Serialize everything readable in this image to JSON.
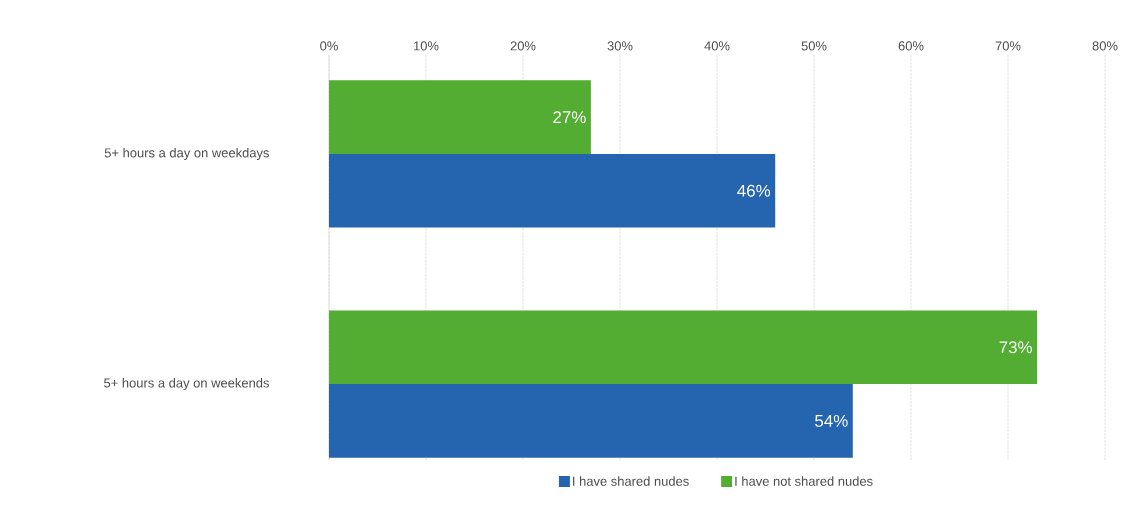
{
  "chart_data": {
    "type": "bar",
    "orientation": "horizontal",
    "categories": [
      "5+ hours a day on weekdays",
      "5+ hours a day on weekends"
    ],
    "series": [
      {
        "name": "I have shared nudes",
        "color": "#2564ae",
        "values": [
          46,
          54
        ],
        "value_labels": [
          "46%",
          "54%"
        ]
      },
      {
        "name": "I have not shared nudes",
        "color": "#52ad32",
        "values": [
          27,
          73
        ],
        "value_labels": [
          "27%",
          "73%"
        ]
      }
    ],
    "xlim": [
      0,
      80
    ],
    "xticks": [
      {
        "value": 0,
        "label": "0%"
      },
      {
        "value": 10,
        "label": "10%"
      },
      {
        "value": 20,
        "label": "20%"
      },
      {
        "value": 30,
        "label": "30%"
      },
      {
        "value": 40,
        "label": "40%"
      },
      {
        "value": 50,
        "label": "50%"
      },
      {
        "value": 60,
        "label": "60%"
      },
      {
        "value": 70,
        "label": "70%"
      },
      {
        "value": 80,
        "label": "80%"
      }
    ],
    "grid": "x",
    "legend": "bottom"
  }
}
